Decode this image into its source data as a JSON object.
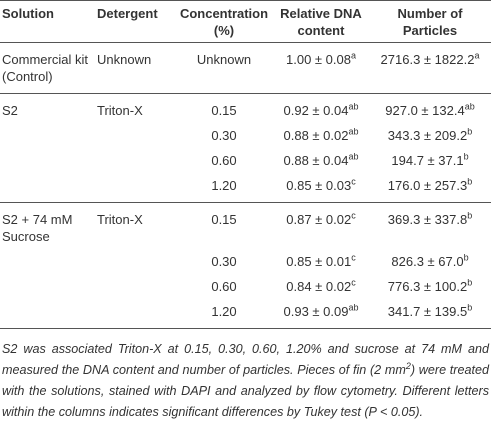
{
  "table": {
    "header": [
      "Solution",
      "Detergent",
      "Concentration (%)",
      "Relative DNA content",
      "Number of Particles"
    ],
    "groups": [
      [
        {
          "solution": "Commercial kit (Control)",
          "detergent": "Unknown",
          "concentration": "Unknown",
          "dna": "1.00 ± 0.08",
          "dna_sup": "a",
          "particles": "2716.3 ± 1822.2",
          "particles_sup": "a"
        }
      ],
      [
        {
          "solution": "S2",
          "detergent": "Triton-X",
          "concentration": "0.15",
          "dna": "0.92 ± 0.04",
          "dna_sup": "ab",
          "particles": "927.0 ± 132.4",
          "particles_sup": "ab"
        },
        {
          "concentration": "0.30",
          "dna": "0.88 ± 0.02",
          "dna_sup": "ab",
          "particles": "343.3 ± 209.2",
          "particles_sup": "b"
        },
        {
          "concentration": "0.60",
          "dna": "0.88 ± 0.04",
          "dna_sup": "ab",
          "particles": "194.7 ± 37.1",
          "particles_sup": "b"
        },
        {
          "concentration": "1.20",
          "dna": "0.85 ± 0.03",
          "dna_sup": "c",
          "particles": "176.0 ± 257.3",
          "particles_sup": "b"
        }
      ],
      [
        {
          "solution": "S2 + 74 mM Sucrose",
          "detergent": "Triton-X",
          "concentration": "0.15",
          "dna": "0.87 ± 0.02",
          "dna_sup": "c",
          "particles": "369.3 ± 337.8",
          "particles_sup": "b"
        },
        {
          "concentration": "0.30",
          "dna": "0.85 ± 0.01",
          "dna_sup": "c",
          "particles": "826.3 ± 67.0",
          "particles_sup": "b"
        },
        {
          "concentration": "0.60",
          "dna": "0.84 ± 0.02",
          "dna_sup": "c",
          "particles": "776.3 ± 100.2",
          "particles_sup": "b"
        },
        {
          "concentration": "1.20",
          "dna": "0.93 ± 0.09",
          "dna_sup": "ab",
          "particles": "341.7 ± 139.5",
          "particles_sup": "b"
        }
      ]
    ]
  },
  "footnote": [
    "S2 was associated Triton-X at 0.15, 0.30, 0.60, 1.20% and sucrose at 74 mM and measured the DNA content and number of particles. Pieces of fin (2 mm",
    "2",
    ") were treated with the solutions, stained with DAPI and analyzed by flow cytometry. Different letters within the columns indicates significant differences by Tukey test (P < 0.05)."
  ]
}
